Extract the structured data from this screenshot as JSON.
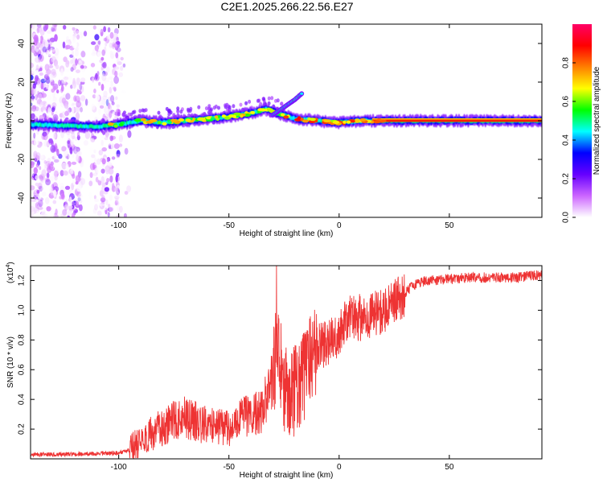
{
  "title": "C2E1.2025.266.22.56.E27",
  "chart_data": [
    {
      "type": "heatmap",
      "xlabel": "Height of straight line (km)",
      "ylabel": "Frequency (Hz)",
      "xlim": [
        -140,
        92
      ],
      "ylim": [
        -50,
        50
      ],
      "xticks": [
        -100,
        -50,
        0,
        50
      ],
      "yticks": [
        -40,
        -20,
        0,
        20,
        40
      ],
      "grid": false,
      "ridge": [
        [
          -140,
          -2
        ],
        [
          -110,
          -3
        ],
        [
          -100,
          -2
        ],
        [
          -90,
          0
        ],
        [
          -80,
          -1
        ],
        [
          -70,
          0
        ],
        [
          -60,
          1
        ],
        [
          -50,
          2
        ],
        [
          -40,
          4
        ],
        [
          -33,
          6
        ],
        [
          -28,
          4
        ],
        [
          -20,
          1
        ],
        [
          -10,
          0
        ],
        [
          0,
          -1
        ],
        [
          10,
          0
        ],
        [
          20,
          0
        ],
        [
          92,
          0
        ]
      ],
      "upper_branch": [
        [
          -30,
          3
        ],
        [
          -25,
          7
        ],
        [
          -20,
          11
        ],
        [
          -17,
          14
        ]
      ],
      "colorbar": {
        "label": "Normalized spectral amplitude",
        "range": [
          0,
          1
        ],
        "ticks": [
          "0.0",
          "0.2",
          "0.4",
          "0.6",
          "0.8"
        ],
        "colors": [
          "#ffffff",
          "#cc66ff",
          "#6600ff",
          "#0000ff",
          "#00ffff",
          "#00ff00",
          "#ffff00",
          "#ff7f00",
          "#ff0000",
          "#ff0066"
        ]
      }
    },
    {
      "type": "line",
      "xlabel": "Height of straight line (km)",
      "ylabel": "SNR (10 * v/v)",
      "multiplier": "(x10",
      "multiplier_exp": "4",
      "multiplier_close": ")",
      "xlim": [
        -140,
        92
      ],
      "ylim": [
        0,
        1.3
      ],
      "xticks": [
        -100,
        -50,
        0,
        50
      ],
      "yticks": [
        "0.2",
        "0.4",
        "0.6",
        "0.8",
        "1.0",
        "1.2"
      ],
      "color": "#ee3333",
      "trend": {
        "x": [
          -140,
          -120,
          -100,
          -95,
          -90,
          -80,
          -70,
          -60,
          -50,
          -45,
          -40,
          -35,
          -30,
          -28,
          -25,
          -20,
          -15,
          -10,
          -5,
          0,
          5,
          10,
          15,
          20,
          25,
          30,
          35,
          40,
          50,
          60,
          70,
          80,
          92
        ],
        "y": [
          0.03,
          0.03,
          0.04,
          0.06,
          0.12,
          0.22,
          0.28,
          0.22,
          0.2,
          0.28,
          0.3,
          0.32,
          0.55,
          0.8,
          0.5,
          0.45,
          0.6,
          0.75,
          0.78,
          0.85,
          0.95,
          0.95,
          0.98,
          1.0,
          1.05,
          1.12,
          1.18,
          1.2,
          1.21,
          1.22,
          1.22,
          1.22,
          1.24
        ]
      }
    }
  ]
}
